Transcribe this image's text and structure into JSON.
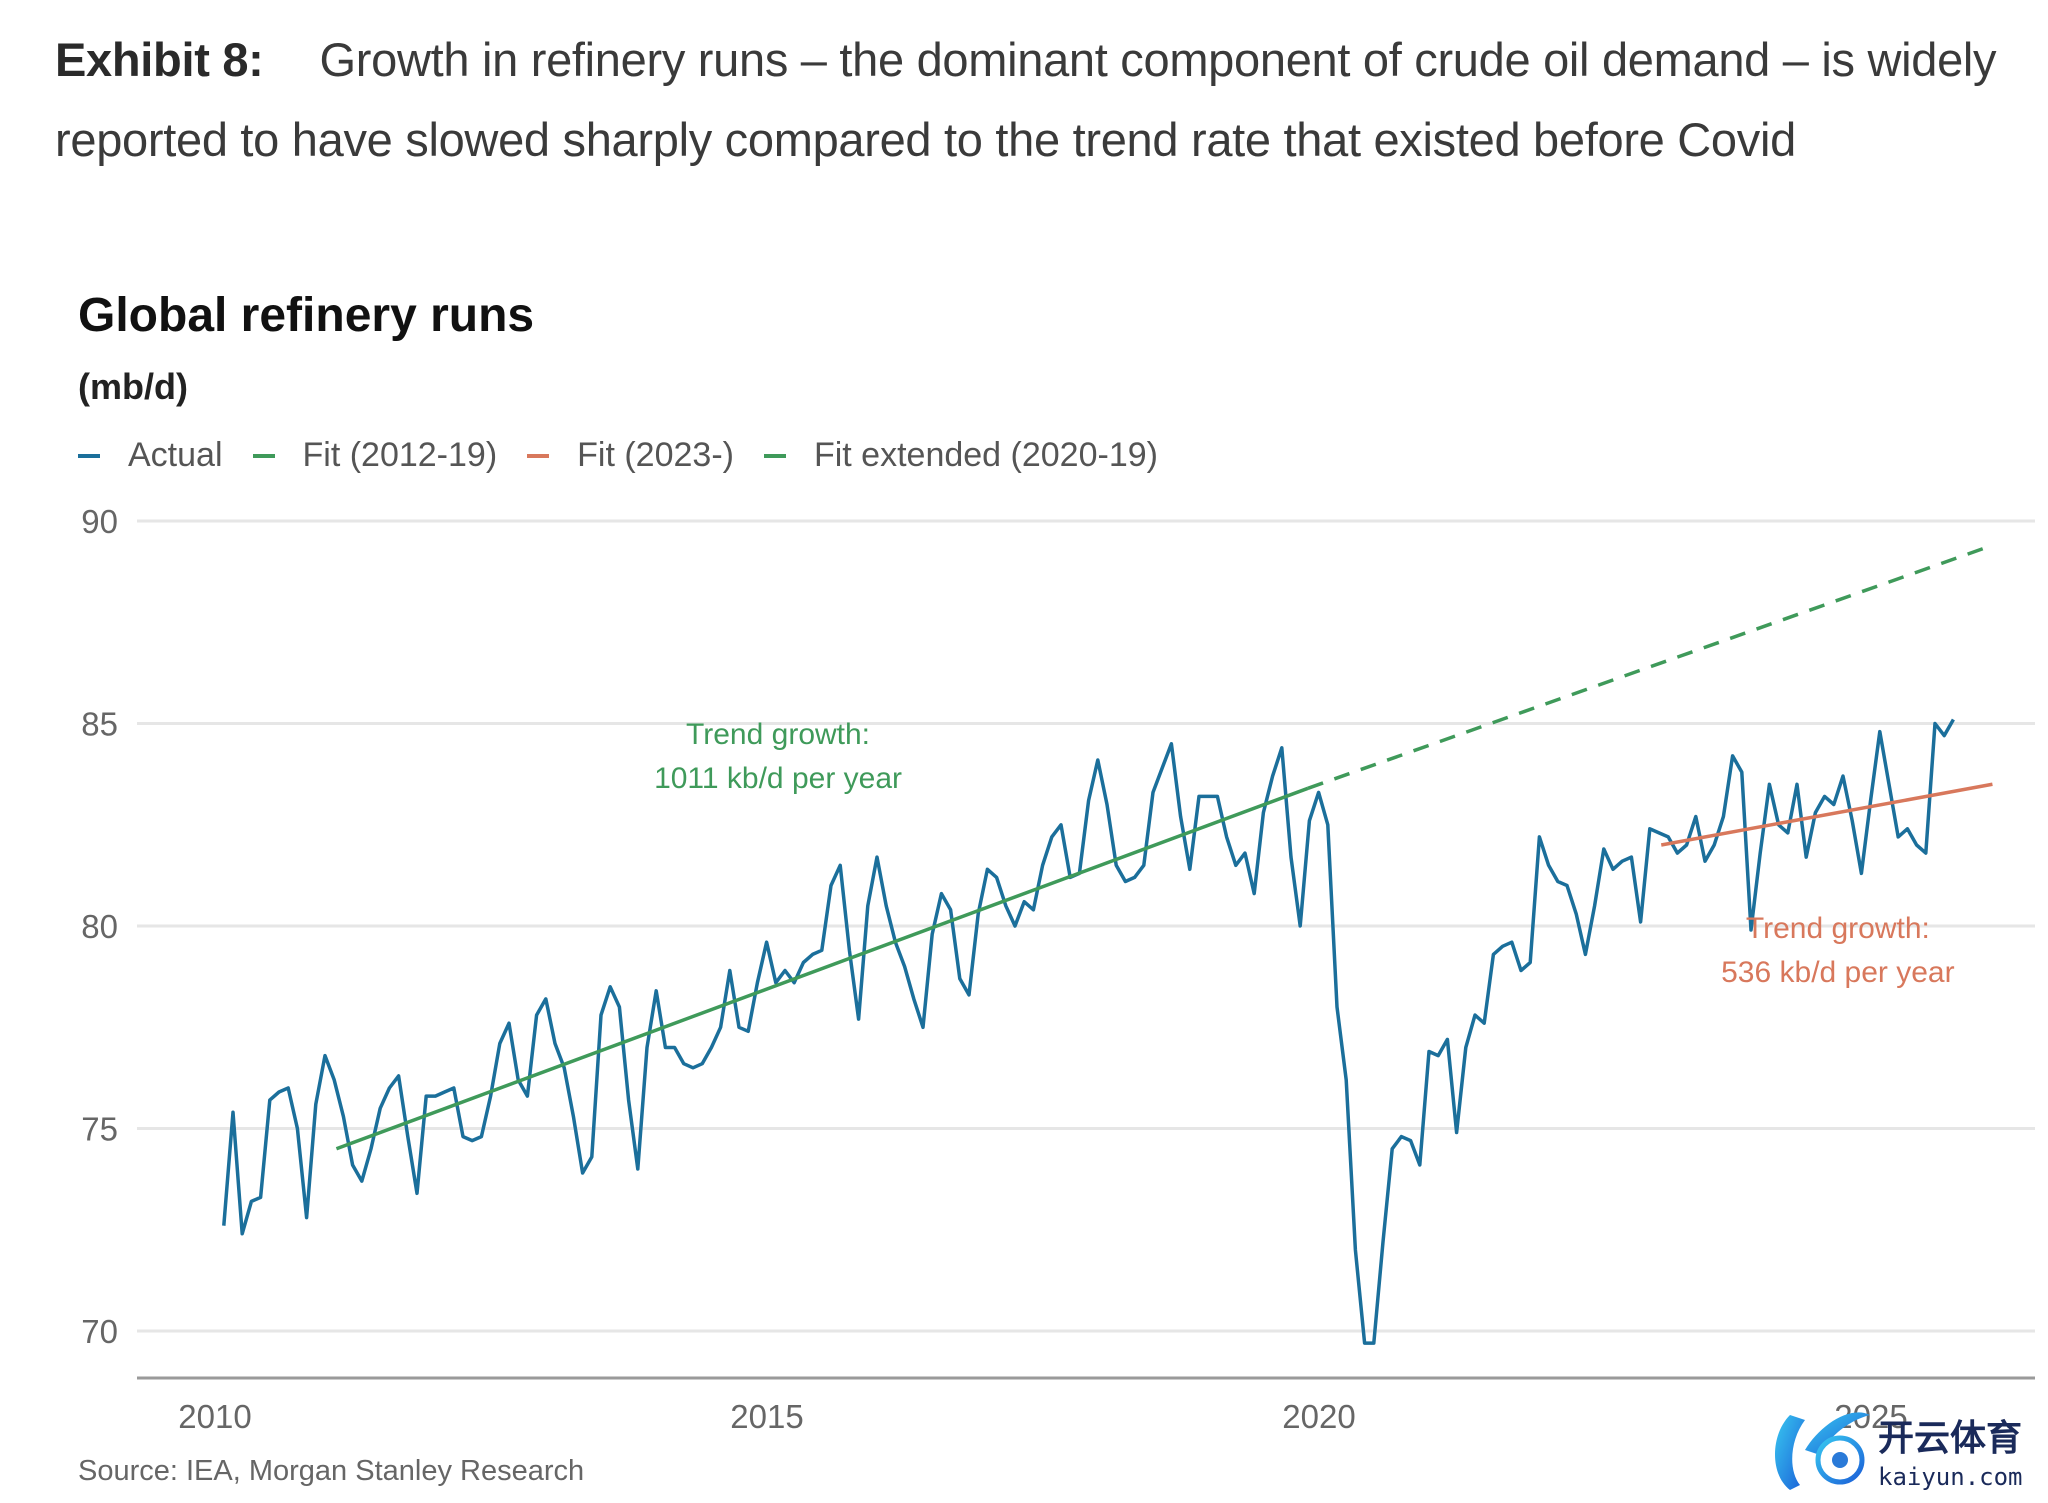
{
  "exhibit": {
    "label": "Exhibit 8:",
    "text": "Growth in refinery runs – the dominant component of crude oil demand – is widely reported to have slowed sharply compared to the trend rate that existed before Covid"
  },
  "source": "Source: IEA, Morgan Stanley Research",
  "watermark": {
    "cn": "开云体育",
    "en": "kaiyun.com"
  },
  "chart_data": {
    "type": "line",
    "title": "Global refinery runs",
    "ylabel": "(mb/d)",
    "xlabel": "",
    "ylim": [
      68.8,
      90
    ],
    "xlim": [
      2009.9,
      2026.4
    ],
    "yticks": [
      70,
      75,
      80,
      85,
      90
    ],
    "xticks": [
      2010,
      2015,
      2020,
      2025
    ],
    "grid": true,
    "legend_position": "top-left",
    "legend": [
      {
        "name": "Actual",
        "color": "#1b6f9b"
      },
      {
        "name": "Fit (2012-19)",
        "color": "#3f9a5a"
      },
      {
        "name": "Fit (2023-)",
        "color": "#d8785c"
      },
      {
        "name": "Fit extended (2020-19)",
        "color": "#3f9a5a"
      }
    ],
    "series": [
      {
        "name": "Actual",
        "x_start": 2010.08,
        "x_step_months": 1,
        "values": [
          72.6,
          75.4,
          72.4,
          73.2,
          73.3,
          75.7,
          75.9,
          76.0,
          75.0,
          72.8,
          75.6,
          76.8,
          76.2,
          75.3,
          74.1,
          73.7,
          74.5,
          75.5,
          76.0,
          76.3,
          74.8,
          73.4,
          75.8,
          75.8,
          75.9,
          76.0,
          74.8,
          74.7,
          74.8,
          75.8,
          77.1,
          77.6,
          76.2,
          75.8,
          77.8,
          78.2,
          77.1,
          76.5,
          75.3,
          73.9,
          74.3,
          77.8,
          78.5,
          78.0,
          75.7,
          74.0,
          77.0,
          78.4,
          77.0,
          77.0,
          76.6,
          76.5,
          76.6,
          77.0,
          77.5,
          78.9,
          77.5,
          77.4,
          78.6,
          79.6,
          78.6,
          78.9,
          78.6,
          79.1,
          79.3,
          79.4,
          81.0,
          81.5,
          79.4,
          77.7,
          80.5,
          81.7,
          80.5,
          79.6,
          79.0,
          78.2,
          77.5,
          79.8,
          80.8,
          80.4,
          78.7,
          78.3,
          80.3,
          81.4,
          81.2,
          80.5,
          80.0,
          80.6,
          80.4,
          81.5,
          82.2,
          82.5,
          81.2,
          81.3,
          83.1,
          84.1,
          83.0,
          81.5,
          81.1,
          81.2,
          81.5,
          83.3,
          83.9,
          84.5,
          82.7,
          81.4,
          83.2,
          83.2,
          83.2,
          82.2,
          81.5,
          81.8,
          80.8,
          82.8,
          83.7,
          84.4,
          81.7,
          80.0,
          82.6,
          83.3,
          82.5,
          78.0,
          76.2,
          72.0,
          69.7,
          69.7,
          72.2,
          74.5,
          74.8,
          74.7,
          74.1,
          76.9,
          76.8,
          77.2,
          74.9,
          77.0,
          77.8,
          77.6,
          79.3,
          79.5,
          79.6,
          78.9,
          79.1,
          82.2,
          81.5,
          81.1,
          81.0,
          80.3,
          79.3,
          80.5,
          81.9,
          81.4,
          81.6,
          81.7,
          80.1,
          82.4,
          82.3,
          82.2,
          81.8,
          82.0,
          82.7,
          81.6,
          82.0,
          82.7,
          84.2,
          83.8,
          79.9,
          81.8,
          83.5,
          82.5,
          82.3,
          83.5,
          81.7,
          82.8,
          83.2,
          83.0,
          83.7,
          82.6,
          81.3,
          83.1,
          84.8,
          83.5,
          82.2,
          82.4,
          82.0,
          81.8,
          85.0,
          84.7,
          85.1
        ]
      },
      {
        "name": "Fit (2012-19)",
        "x": [
          2011.1,
          2019.9
        ],
        "y": [
          74.5,
          83.4
        ],
        "style": "solid"
      },
      {
        "name": "Fit extended (2020-19)",
        "x": [
          2019.9,
          2026.1
        ],
        "y": [
          83.4,
          89.4
        ],
        "style": "dashed"
      },
      {
        "name": "Fit (2023-)",
        "x": [
          2023.1,
          2026.1
        ],
        "y": [
          82.0,
          83.5
        ],
        "style": "solid"
      }
    ],
    "annotations": [
      {
        "text_lines": [
          "Trend growth:",
          "1011 kb/d per year"
        ],
        "color": "#3f9a5a",
        "x": 2015.1,
        "y": 84.5
      },
      {
        "text_lines": [
          "Trend growth:",
          "536 kb/d per year"
        ],
        "color": "#d8785c",
        "x": 2024.7,
        "y": 79.7
      }
    ]
  }
}
